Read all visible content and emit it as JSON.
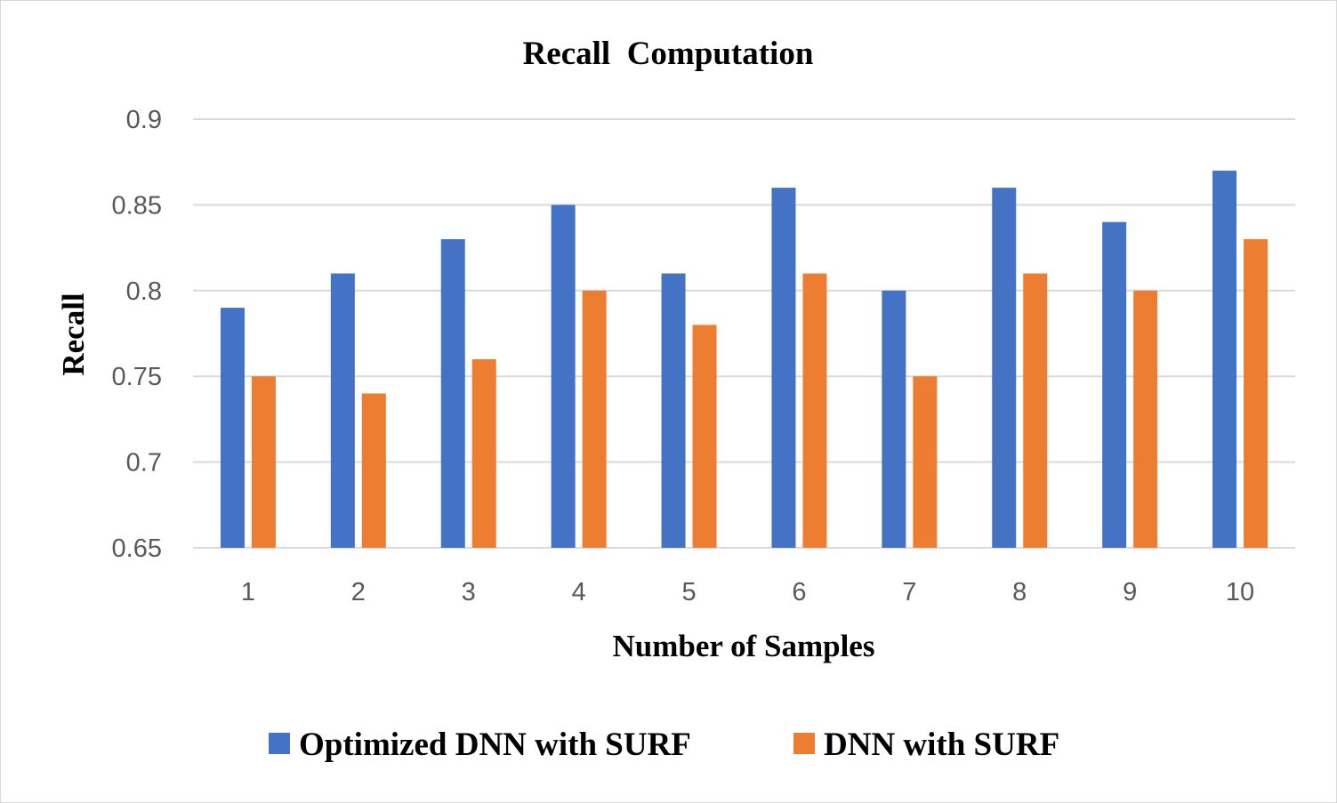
{
  "chart_data": {
    "type": "bar",
    "title": "Recall  Computation",
    "xlabel": "Number of Samples",
    "ylabel": "Recall",
    "categories": [
      "1",
      "2",
      "3",
      "4",
      "5",
      "6",
      "7",
      "8",
      "9",
      "10"
    ],
    "ylim": [
      0.65,
      0.9
    ],
    "yticks": [
      "0.9",
      "0.85",
      "0.8",
      "0.75",
      "0.7",
      "0.65"
    ],
    "grid": true,
    "legend_position": "bottom",
    "series": [
      {
        "name": "Optimized DNN with SURF",
        "color": "#4472c4",
        "values": [
          0.79,
          0.81,
          0.83,
          0.85,
          0.81,
          0.86,
          0.8,
          0.86,
          0.84,
          0.87
        ]
      },
      {
        "name": "DNN with SURF",
        "color": "#ed7d31",
        "values": [
          0.75,
          0.74,
          0.76,
          0.8,
          0.78,
          0.81,
          0.75,
          0.81,
          0.8,
          0.83
        ]
      }
    ]
  }
}
